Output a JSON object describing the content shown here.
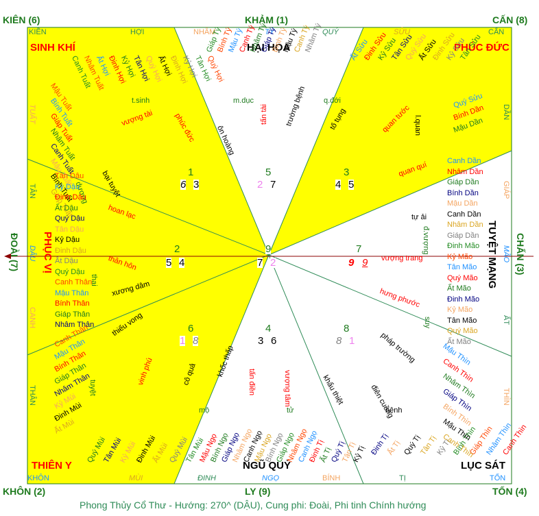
{
  "corners": {
    "kien": "KIÊN (6)",
    "kham": "KHẢM (1)",
    "can": "CẤN (8)",
    "doai": "ĐOÀI (7)",
    "chan": "CHẤN (3)",
    "khon": "KHÔN (2)",
    "ly": "LY (9)",
    "ton": "TỐN (4)"
  },
  "edges": {
    "top": [
      "KIỀN",
      "HỢI",
      "NHÂM",
      "TÝ",
      "QUÝ",
      "SỬU",
      "CẤN"
    ],
    "bottom": [
      "KHÔN",
      "MÙI",
      "ĐINH",
      "NGỌ",
      "BÍNH",
      "TỊ",
      "TỐN"
    ],
    "left": [
      "TUẤT",
      "TÂN",
      "DẬU",
      "CANH",
      "THÂN"
    ],
    "right": [
      "DẦN",
      "GIÁP",
      "MÃO",
      "ẤT",
      "THÌN"
    ]
  },
  "star_names": {
    "sinh_khi": "SINH KHÍ",
    "hai_hoa": "HẠI HỌA",
    "phuc_duc": "PHÚC ĐỨC",
    "phuc_vi": "PHỤC VỊ",
    "tuyet_mang": "TUYỆT MẠNG",
    "thien_y": "THIÊN Y",
    "ngu_quy": "NGŨ QUỶ",
    "luc_sat": "LỤC SÁT"
  },
  "flying_stars": [
    {
      "top": "1",
      "left": "6",
      "right": "3"
    },
    {
      "top": "5",
      "left": "2",
      "right": "7"
    },
    {
      "top": "3",
      "left": "4",
      "right": "5"
    },
    {
      "top": "2",
      "left": "5",
      "right": "4"
    },
    {
      "top": "9",
      "left": "7",
      "right": "2"
    },
    {
      "top": "7",
      "left": "9",
      "right": "9"
    },
    {
      "top": "6",
      "left": "1",
      "right": "8"
    },
    {
      "top": "4",
      "left": "3",
      "right": "6"
    },
    {
      "top": "8",
      "left": "8",
      "right": "1"
    }
  ],
  "palace_terms": [
    "t.sinh",
    "vượng tài",
    "phúc đức",
    "m.dục",
    "ôn hoàng",
    "tấn tài",
    "q.đới",
    "trường bệnh",
    "tố tụng",
    "l.quan",
    "quan tước",
    "quan quí",
    "bại tuyệt",
    "dương",
    "hoan lạc",
    "thân hôn",
    "tự ải",
    "đ.vượng",
    "vượng trang",
    "thai",
    "xương dâm",
    "hưng phước",
    "suy",
    "thiếu vong",
    "pháp trường",
    "tuyệt",
    "vinh phú",
    "cô quả",
    "mộ",
    "khốc thấp",
    "tấn điền",
    "vượng tâm",
    "tử",
    "khẩu thiệt",
    "điên cuồng",
    "bệnh"
  ],
  "stems": {
    "top_left": [
      "Mậu Tuất",
      "Bính Tuất",
      "Giáp Tuất",
      "Nhâm Tuất",
      "Canh Tuất",
      "Mậu Tuất",
      "Bính Tuất",
      "Giáp Tuất"
    ],
    "top_fan": [
      "Canh Tuất",
      "Nhâm Tuất",
      "Ất Hợi",
      "Đinh Hợi",
      "Kỷ Hợi",
      "Tân Hợi",
      "Quý Hợi",
      "Ất Hợi",
      "Đinh Hợi",
      "Kỷ Hợi",
      "Tân Hợi",
      "Quý Hợi"
    ],
    "top_mid": [
      "Giáp Tý",
      "Bính Tý",
      "Mậu Tý",
      "Canh Tý",
      "Nhâm Tý",
      "Giáp Tý",
      "Bính Tý",
      "Mậu Tý",
      "Canh Tý",
      "Nhâm Tý"
    ],
    "top_right": [
      "Ất Sửu",
      "Đinh Sửu",
      "Kỷ Sửu",
      "Tân Sửu",
      "Quý Sửu",
      "Ất Sửu",
      "Đinh Sửu",
      "Kỷ Sửu",
      "Tân Sửu"
    ],
    "left_col": [
      "Tân Dậu",
      "Kỷ Dậu",
      "Đinh Dậu",
      "Ất Dậu",
      "Quý Dậu",
      "Tân Dậu",
      "Kỷ Dậu",
      "Đinh Dậu",
      "Ất Dậu",
      "Quý Dậu",
      "Canh Thân",
      "Mậu Thân",
      "Bính Thân",
      "Giáp Thân",
      "Nhâm Thân"
    ],
    "left_low": [
      "Canh Thân",
      "Mậu Thân",
      "Bính Thân",
      "Giáp Thân",
      "Nhâm Thân",
      "Kỷ Mùi",
      "Đinh Mùi",
      "Ất Mùi"
    ],
    "bottom_left": [
      "Quý Mùi",
      "Tân Mùi",
      "Kỷ Mùi",
      "Đinh Mùi",
      "Ất Mùi",
      "Quý Mùi",
      "Tân Mùi"
    ],
    "bottom_mid": [
      "Mậu Ngọ",
      "Bính Ngọ",
      "Giáp Ngọ",
      "Nhâm Ngọ",
      "Canh Ngọ",
      "Mậu Ngọ",
      "Bính Ngọ",
      "Giáp Ngọ",
      "Nhâm Ngọ",
      "Canh Ngọ",
      "Đinh Tị",
      "Ất Tị",
      "Quý Tị",
      "Tân Tị",
      "Kỷ Tị"
    ],
    "bottom_right": [
      "Đinh Tị",
      "Ất Tị",
      "Quý Tị",
      "Tân Tị",
      "Kỷ Tị",
      "Bính Thìn",
      "Giáp Thìn",
      "Nhâm Thìn",
      "Canh Thìn"
    ],
    "right_col": [
      "Canh Dần",
      "Nhâm Dần",
      "Giáp Dần",
      "Bính Dần",
      "Mậu Dần",
      "Canh Dần",
      "Nhâm Dần",
      "Giáp Dần",
      "Đinh Mão",
      "Kỷ Mão",
      "Tân Mão",
      "Quý Mão",
      "Ất Mão",
      "Đinh Mão",
      "Kỷ Mão",
      "Tân Mão",
      "Quý Mão",
      "Ất Mão"
    ],
    "right_top": [
      "Quý Sửu",
      "Bính Dần",
      "Mậu Dần"
    ],
    "right_low": [
      "Mậu Thìn",
      "Canh Thìn",
      "Nhâm Thìn",
      "Giáp Thìn",
      "Bính Thìn",
      "Mậu Thìn",
      "Canh Thìn"
    ]
  },
  "footer": "Phong Thủy Cổ Thư - Hướng: 270^ (DẬU), Cung phi: Đoài, Phi tinh Chính hướng",
  "colors": {
    "yellow": "#ffff00",
    "green": "#1e7a1e",
    "red": "#ff0000",
    "blue": "#1e90ff",
    "arrow": "#8b0000"
  }
}
